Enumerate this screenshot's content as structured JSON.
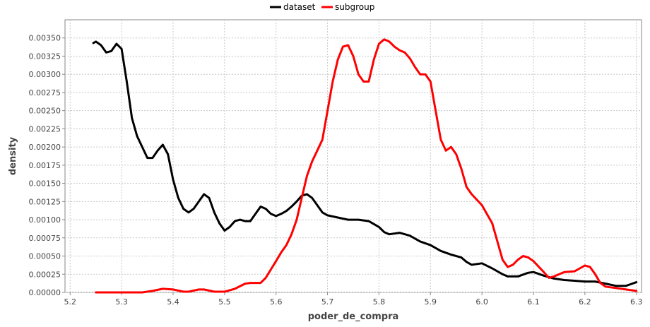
{
  "chart_data": {
    "type": "line",
    "title": "",
    "xlabel": "poder_de_compra",
    "ylabel": "density",
    "xlim": [
      5.19,
      6.31
    ],
    "ylim": [
      0.0,
      0.00375
    ],
    "x_ticks": [
      5.2,
      5.3,
      5.4,
      5.5,
      5.6,
      5.7,
      5.8,
      5.9,
      6.0,
      6.1,
      6.2,
      6.3
    ],
    "x_tick_labels": [
      "5.2",
      "5.3",
      "5.4",
      "5.5",
      "5.6",
      "5.7",
      "5.8",
      "5.9",
      "6.0",
      "6.1",
      "6.2",
      "6.3"
    ],
    "y_ticks": [
      0.0,
      0.00025,
      0.0005,
      0.00075,
      0.001,
      0.00125,
      0.0015,
      0.00175,
      0.002,
      0.00225,
      0.0025,
      0.00275,
      0.003,
      0.00325,
      0.0035
    ],
    "y_tick_labels": [
      "0.00000",
      "0.00025",
      "0.00050",
      "0.00075",
      "0.00100",
      "0.00125",
      "0.00150",
      "0.00175",
      "0.00200",
      "0.00225",
      "0.00250",
      "0.00275",
      "0.00300",
      "0.00325",
      "0.00350"
    ],
    "grid": true,
    "legend_position": "top-center",
    "series": [
      {
        "name": "dataset",
        "color": "#000000",
        "points": [
          [
            5.245,
            0.00343
          ],
          [
            5.25,
            0.00345
          ],
          [
            5.26,
            0.0034
          ],
          [
            5.27,
            0.0033
          ],
          [
            5.28,
            0.00332
          ],
          [
            5.29,
            0.00342
          ],
          [
            5.3,
            0.00335
          ],
          [
            5.31,
            0.0029
          ],
          [
            5.32,
            0.0024
          ],
          [
            5.33,
            0.00215
          ],
          [
            5.34,
            0.002
          ],
          [
            5.35,
            0.00185
          ],
          [
            5.36,
            0.00185
          ],
          [
            5.37,
            0.00195
          ],
          [
            5.38,
            0.00203
          ],
          [
            5.39,
            0.0019
          ],
          [
            5.4,
            0.00155
          ],
          [
            5.41,
            0.0013
          ],
          [
            5.42,
            0.00115
          ],
          [
            5.43,
            0.0011
          ],
          [
            5.44,
            0.00115
          ],
          [
            5.45,
            0.00125
          ],
          [
            5.46,
            0.00135
          ],
          [
            5.47,
            0.0013
          ],
          [
            5.48,
            0.0011
          ],
          [
            5.49,
            0.00095
          ],
          [
            5.5,
            0.00085
          ],
          [
            5.51,
            0.0009
          ],
          [
            5.52,
            0.00098
          ],
          [
            5.53,
            0.001
          ],
          [
            5.54,
            0.00098
          ],
          [
            5.55,
            0.00098
          ],
          [
            5.56,
            0.00108
          ],
          [
            5.57,
            0.00118
          ],
          [
            5.58,
            0.00115
          ],
          [
            5.59,
            0.00108
          ],
          [
            5.6,
            0.00105
          ],
          [
            5.61,
            0.00108
          ],
          [
            5.62,
            0.00112
          ],
          [
            5.63,
            0.00118
          ],
          [
            5.64,
            0.00125
          ],
          [
            5.65,
            0.00133
          ],
          [
            5.66,
            0.00135
          ],
          [
            5.67,
            0.0013
          ],
          [
            5.68,
            0.0012
          ],
          [
            5.69,
            0.0011
          ],
          [
            5.7,
            0.00106
          ],
          [
            5.72,
            0.00103
          ],
          [
            5.74,
            0.001
          ],
          [
            5.76,
            0.001
          ],
          [
            5.78,
            0.00098
          ],
          [
            5.8,
            0.0009
          ],
          [
            5.81,
            0.00083
          ],
          [
            5.82,
            0.0008
          ],
          [
            5.84,
            0.00082
          ],
          [
            5.86,
            0.00078
          ],
          [
            5.88,
            0.0007
          ],
          [
            5.9,
            0.00065
          ],
          [
            5.92,
            0.00057
          ],
          [
            5.94,
            0.00052
          ],
          [
            5.96,
            0.00048
          ],
          [
            5.97,
            0.00042
          ],
          [
            5.98,
            0.00038
          ],
          [
            6.0,
            0.0004
          ],
          [
            6.02,
            0.00033
          ],
          [
            6.04,
            0.00025
          ],
          [
            6.05,
            0.00022
          ],
          [
            6.07,
            0.00022
          ],
          [
            6.09,
            0.00027
          ],
          [
            6.1,
            0.00028
          ],
          [
            6.12,
            0.00023
          ],
          [
            6.14,
            0.00019
          ],
          [
            6.16,
            0.00017
          ],
          [
            6.18,
            0.00016
          ],
          [
            6.2,
            0.00015
          ],
          [
            6.22,
            0.00015
          ],
          [
            6.24,
            0.00012
          ],
          [
            6.26,
            9e-05
          ],
          [
            6.28,
            9e-05
          ],
          [
            6.3,
            0.00014
          ]
        ]
      },
      {
        "name": "subgroup",
        "color": "#ff0000",
        "points": [
          [
            5.25,
            0.0
          ],
          [
            5.3,
            0.0
          ],
          [
            5.34,
            0.0
          ],
          [
            5.36,
            2e-05
          ],
          [
            5.38,
            5e-05
          ],
          [
            5.4,
            4e-05
          ],
          [
            5.42,
            1e-05
          ],
          [
            5.43,
            1e-05
          ],
          [
            5.45,
            4e-05
          ],
          [
            5.46,
            4e-05
          ],
          [
            5.48,
            1e-05
          ],
          [
            5.5,
            1e-05
          ],
          [
            5.52,
            5e-05
          ],
          [
            5.54,
            0.00012
          ],
          [
            5.55,
            0.00013
          ],
          [
            5.57,
            0.00013
          ],
          [
            5.58,
            0.0002
          ],
          [
            5.6,
            0.00043
          ],
          [
            5.61,
            0.00055
          ],
          [
            5.62,
            0.00065
          ],
          [
            5.63,
            0.0008
          ],
          [
            5.64,
            0.001
          ],
          [
            5.65,
            0.0013
          ],
          [
            5.66,
            0.0016
          ],
          [
            5.67,
            0.0018
          ],
          [
            5.68,
            0.00195
          ],
          [
            5.69,
            0.0021
          ],
          [
            5.7,
            0.0025
          ],
          [
            5.71,
            0.0029
          ],
          [
            5.72,
            0.0032
          ],
          [
            5.73,
            0.00338
          ],
          [
            5.74,
            0.0034
          ],
          [
            5.75,
            0.00325
          ],
          [
            5.76,
            0.003
          ],
          [
            5.77,
            0.0029
          ],
          [
            5.78,
            0.0029
          ],
          [
            5.79,
            0.0032
          ],
          [
            5.8,
            0.00342
          ],
          [
            5.81,
            0.00348
          ],
          [
            5.82,
            0.00345
          ],
          [
            5.83,
            0.00338
          ],
          [
            5.84,
            0.00333
          ],
          [
            5.85,
            0.0033
          ],
          [
            5.86,
            0.00322
          ],
          [
            5.87,
            0.0031
          ],
          [
            5.88,
            0.003
          ],
          [
            5.89,
            0.003
          ],
          [
            5.9,
            0.0029
          ],
          [
            5.91,
            0.0025
          ],
          [
            5.92,
            0.0021
          ],
          [
            5.93,
            0.00195
          ],
          [
            5.94,
            0.002
          ],
          [
            5.95,
            0.0019
          ],
          [
            5.96,
            0.0017
          ],
          [
            5.97,
            0.00145
          ],
          [
            5.98,
            0.00135
          ],
          [
            6.0,
            0.0012
          ],
          [
            6.02,
            0.00095
          ],
          [
            6.03,
            0.0007
          ],
          [
            6.04,
            0.00045
          ],
          [
            6.05,
            0.00035
          ],
          [
            6.06,
            0.00038
          ],
          [
            6.07,
            0.00045
          ],
          [
            6.08,
            0.0005
          ],
          [
            6.09,
            0.00048
          ],
          [
            6.1,
            0.00043
          ],
          [
            6.12,
            0.00028
          ],
          [
            6.13,
            0.0002
          ],
          [
            6.14,
            0.00022
          ],
          [
            6.15,
            0.00025
          ],
          [
            6.16,
            0.00028
          ],
          [
            6.18,
            0.00029
          ],
          [
            6.19,
            0.00033
          ],
          [
            6.2,
            0.00037
          ],
          [
            6.21,
            0.00035
          ],
          [
            6.22,
            0.00025
          ],
          [
            6.23,
            0.00013
          ],
          [
            6.24,
            8e-05
          ],
          [
            6.26,
            6e-05
          ],
          [
            6.28,
            4e-05
          ],
          [
            6.3,
            2e-05
          ]
        ]
      }
    ]
  }
}
